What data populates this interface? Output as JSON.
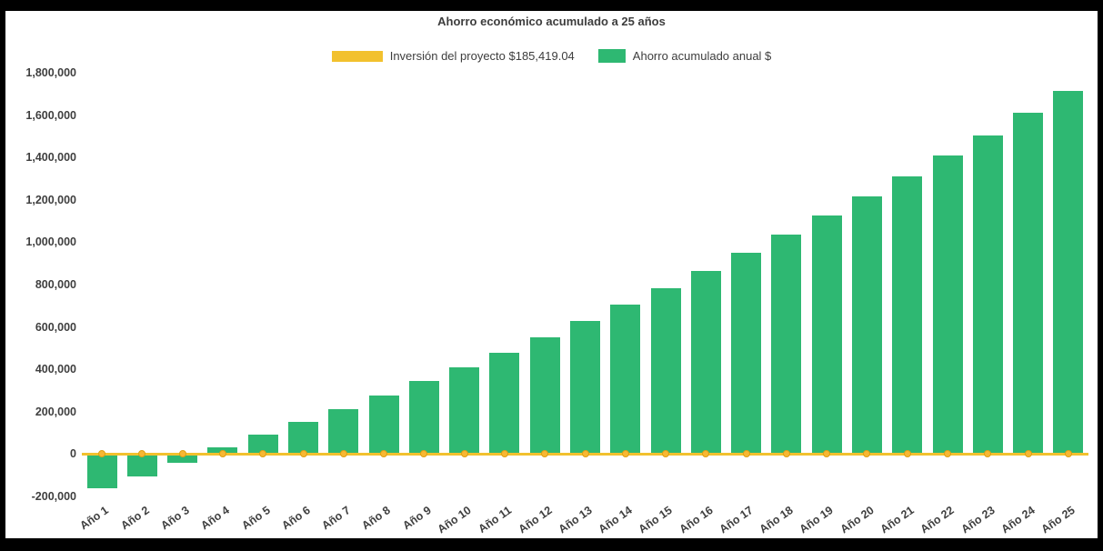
{
  "page": {
    "background_color": "#000000",
    "surface_color": "#ffffff"
  },
  "chart_data": {
    "type": "bar",
    "title": "Ahorro económico acumulado a 25 años",
    "categories": [
      "Año 1",
      "Año 2",
      "Año 3",
      "Año 4",
      "Año 5",
      "Año 6",
      "Año 7",
      "Año 8",
      "Año 9",
      "Año 10",
      "Año 11",
      "Año 12",
      "Año 13",
      "Año 14",
      "Año 15",
      "Año 16",
      "Año 17",
      "Año 18",
      "Año 19",
      "Año 20",
      "Año 21",
      "Año 22",
      "Año 23",
      "Año 24",
      "Año 25"
    ],
    "series": [
      {
        "name": "Inversión del proyecto $185,419.04",
        "type": "line",
        "color": "#F2C12E",
        "marker_color": "#F7B733",
        "constant_value": 0
      },
      {
        "name": "Ahorro acumulado anual $",
        "type": "bar",
        "color": "#2EB872",
        "values": [
          -160000,
          -105000,
          -40000,
          30000,
          90000,
          150000,
          210000,
          275000,
          345000,
          410000,
          480000,
          550000,
          630000,
          705000,
          785000,
          865000,
          950000,
          1035000,
          1125000,
          1215000,
          1310000,
          1410000,
          1505000,
          1610000,
          1715000
        ]
      }
    ],
    "ylim": [
      -200000,
      1800000
    ],
    "ytick_step": 200000,
    "xlabel": "",
    "ylabel": "",
    "grid": false,
    "legend_position": "top"
  }
}
